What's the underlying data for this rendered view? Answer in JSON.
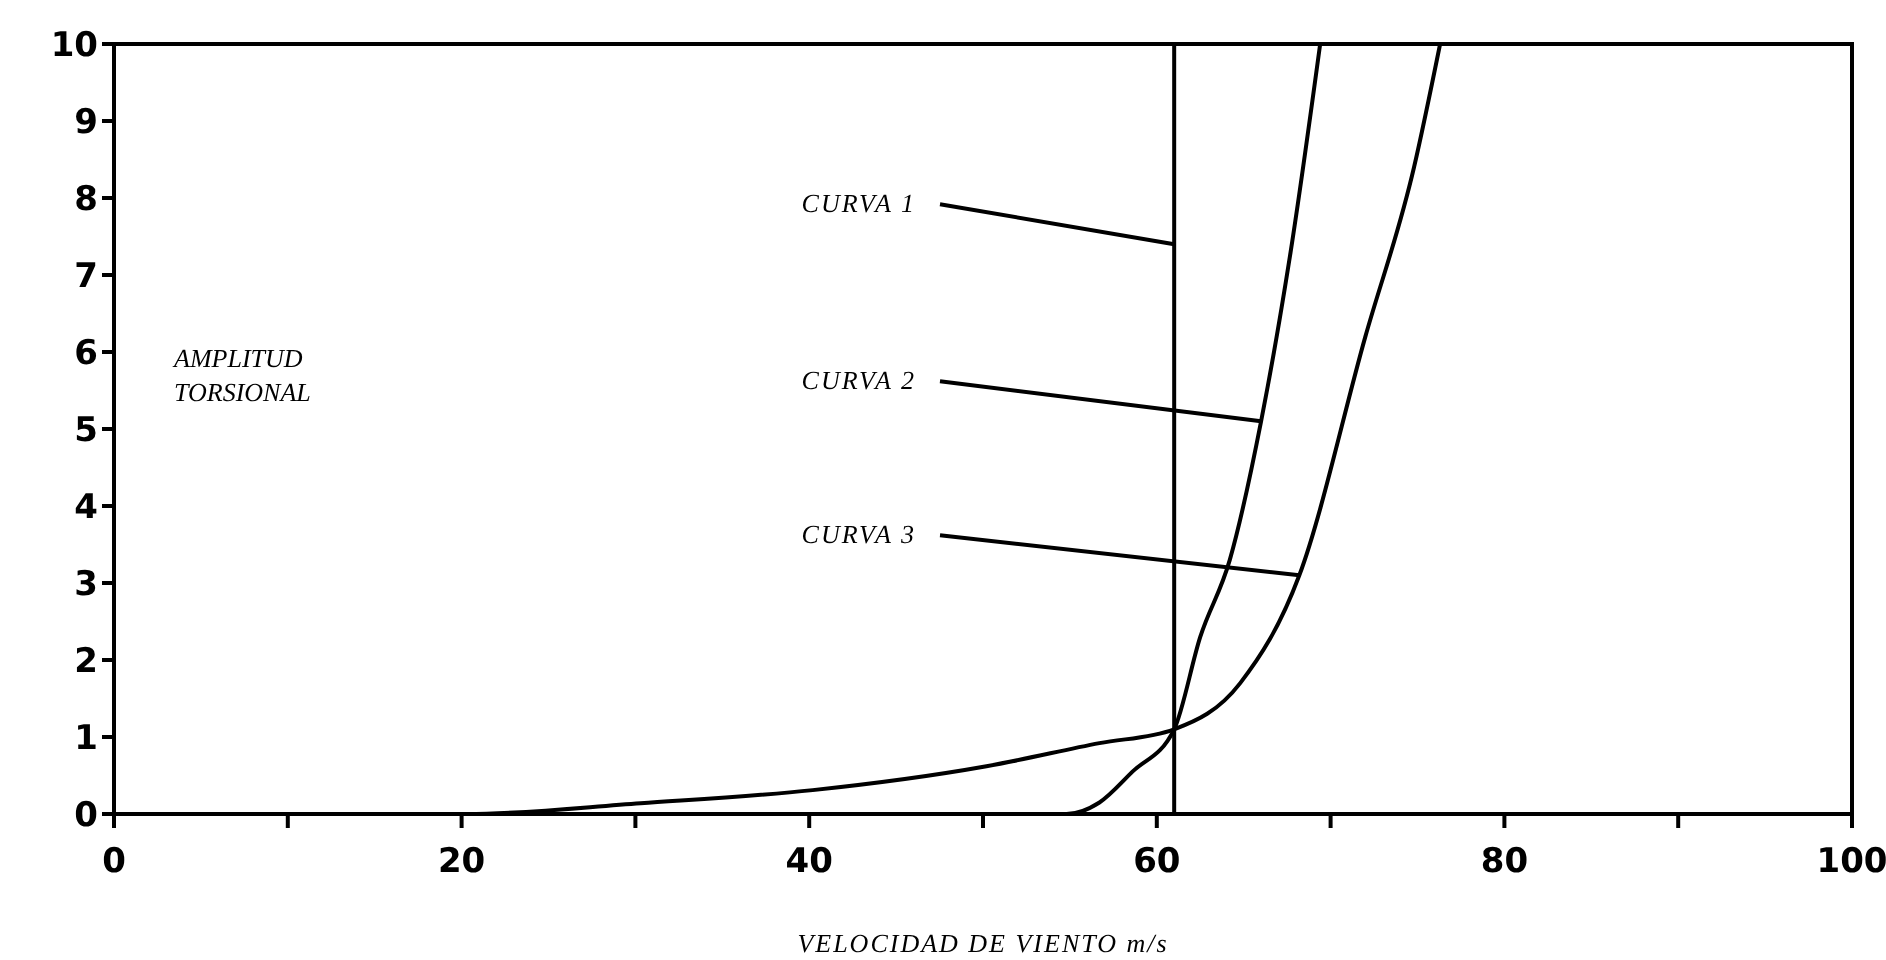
{
  "chart_data": {
    "type": "line",
    "xlabel": "VELOCIDAD DE VIENTO m/s",
    "ylabel": "AMPLITUD TORSIONAL",
    "xlim": [
      0,
      100
    ],
    "xticks": [
      0,
      {
        "value": 10,
        "label": null
      },
      20,
      {
        "value": 30,
        "label": null
      },
      40,
      {
        "value": 50,
        "label": null
      },
      60,
      {
        "value": 70,
        "label": null
      },
      80,
      {
        "value": 90,
        "label": null
      },
      100
    ],
    "ylim": [
      0,
      10
    ],
    "yticks": [
      0,
      1,
      2,
      3,
      4,
      5,
      6,
      7,
      8,
      9,
      10
    ],
    "series": [
      {
        "color": "#000000",
        "x": [
          61,
          61
        ],
        "values": [
          0,
          10
        ]
      },
      {
        "color": "#000000",
        "x": [
          0,
          54.8,
          56.7,
          58.6,
          61,
          62.5,
          64.2,
          66,
          67.7,
          69.4
        ],
        "values": [
          0,
          0,
          0.15,
          0.55,
          1.1,
          2.3,
          3.3,
          5.1,
          7.3,
          10
        ]
      },
      {
        "color": "#000000",
        "x": [
          0,
          20.3,
          30.3,
          40.2,
          50.2,
          56.7,
          61,
          64.8,
          68.2,
          72,
          74.8,
          76.3
        ],
        "values": [
          0,
          0,
          0.14,
          0.31,
          0.62,
          0.92,
          1.1,
          1.7,
          3.1,
          6.2,
          8.4,
          10
        ]
      }
    ],
    "annotations": [
      {
        "text": "CURVA 1",
        "x": 61,
        "y": 7.4
      },
      {
        "text": "CURVA 2",
        "x": 66,
        "y": 5.1
      },
      {
        "text": "CURVA 3",
        "x": 68.2,
        "y": 3.1
      }
    ],
    "grid": false,
    "marker": "none"
  }
}
